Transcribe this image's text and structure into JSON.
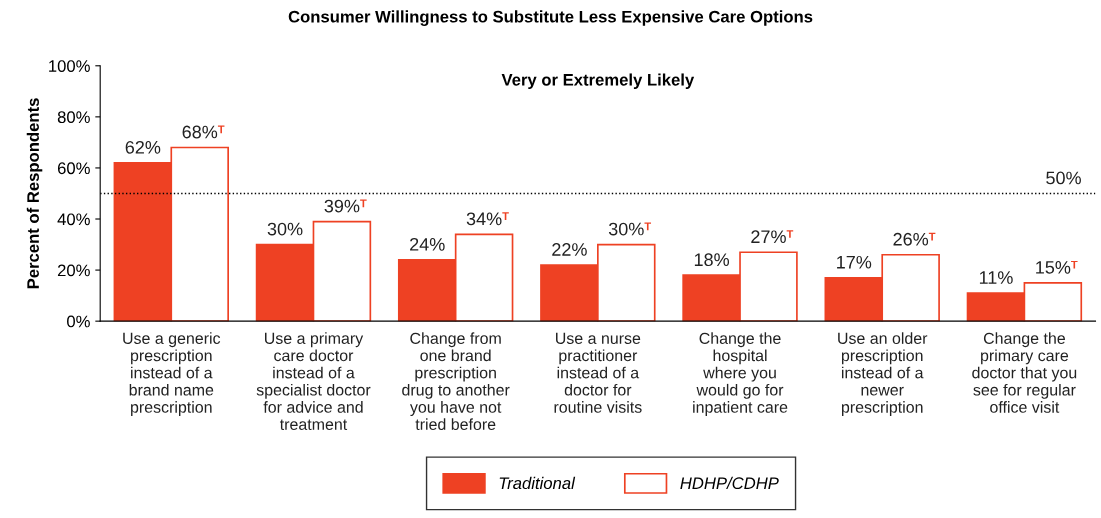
{
  "chart_data": {
    "type": "bar",
    "title": "Consumer Willingness to Substitute Less Expensive Care Options",
    "subtitle": "Very or Extremely Likely",
    "ylabel": "Percent of Respondents",
    "categories": [
      "Use a generic\nprescription\ninstead of a\nbrand name\nprescription",
      "Use a primary\ncare doctor\ninstead of a\nspecialist doctor\nfor advice and\ntreatment",
      "Change from\none brand\nprescription\ndrug to another\nyou have not\ntried before",
      "Use a nurse\npractitioner\ninstead of a\ndoctor for\nroutine visits",
      "Change the\nhospital\nwhere you\nwould go for\ninpatient care",
      "Use an older\nprescription\ninstead of a\nnewer\nprescription",
      "Change the\nprimary care\ndoctor that you\nsee for regular\noffice visit"
    ],
    "series": [
      {
        "name": "Traditional",
        "color": "#ee4123",
        "values": [
          62,
          30,
          24,
          22,
          18,
          17,
          11
        ],
        "value_labels": [
          "62%",
          "30%",
          "24%",
          "22%",
          "18%",
          "17%",
          "11%"
        ]
      },
      {
        "name": "HDHP/CDHP",
        "color": "#ffffff",
        "values": [
          68,
          39,
          34,
          30,
          27,
          26,
          15
        ],
        "value_labels": [
          "68%$^{T}$",
          "39%$^{T}$",
          "34%$^{T}$",
          "30%$^{T}$",
          "27%$^{T}$",
          "26%$^{T}$",
          "15%$^{T}$"
        ]
      }
    ],
    "ylim": [
      0,
      100
    ],
    "yticks": [
      {
        "value": 0,
        "label": "0%"
      },
      {
        "value": 20,
        "label": "20%"
      },
      {
        "value": 40,
        "label": "40%"
      },
      {
        "value": 60,
        "label": "60%"
      },
      {
        "value": 80,
        "label": "80%"
      },
      {
        "value": 100,
        "label": "100%"
      }
    ],
    "ref_lines": [
      {
        "axis": "y",
        "value": 50,
        "label": "50%",
        "line_style": "dotted"
      }
    ],
    "grid": false,
    "legend": "bottom"
  }
}
